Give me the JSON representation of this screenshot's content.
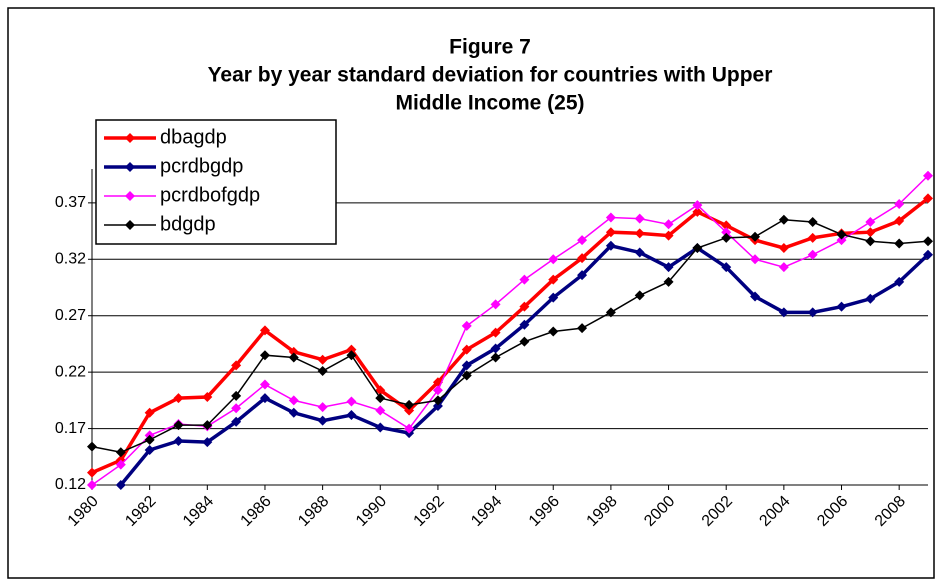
{
  "chart_data": {
    "type": "line",
    "title": [
      "Figure 7",
      "Year by year standard deviation for countries  with Upper",
      "Middle Income (25)"
    ],
    "x": [
      1980,
      1981,
      1982,
      1983,
      1984,
      1985,
      1986,
      1987,
      1988,
      1989,
      1990,
      1991,
      1992,
      1993,
      1994,
      1995,
      1996,
      1997,
      1998,
      1999,
      2000,
      2001,
      2002,
      2003,
      2004,
      2005,
      2006,
      2007,
      2008,
      2009
    ],
    "series": [
      {
        "name": "dbagdp",
        "color": "#ff0000",
        "values": [
          0.131,
          0.142,
          0.184,
          0.197,
          0.198,
          0.226,
          0.257,
          0.238,
          0.231,
          0.24,
          0.204,
          0.186,
          0.211,
          0.24,
          0.255,
          0.278,
          0.302,
          0.321,
          0.344,
          0.343,
          0.341,
          0.362,
          0.35,
          0.337,
          0.33,
          0.339,
          0.343,
          0.344,
          0.354,
          0.374
        ]
      },
      {
        "name": "pcrdbgdp",
        "color": "#000080",
        "values": [
          null,
          0.12,
          0.151,
          0.159,
          0.158,
          0.176,
          0.197,
          0.184,
          0.177,
          0.182,
          0.171,
          0.166,
          0.19,
          0.226,
          0.241,
          0.262,
          0.286,
          0.306,
          0.332,
          0.326,
          0.313,
          0.33,
          0.313,
          0.287,
          0.273,
          0.273,
          0.278,
          0.285,
          0.3,
          0.324
        ]
      },
      {
        "name": "pcrdbofgdp",
        "color": "#ff00ff",
        "values": [
          0.12,
          0.138,
          0.164,
          0.174,
          0.172,
          0.188,
          0.209,
          0.195,
          0.189,
          0.194,
          0.186,
          0.17,
          0.204,
          0.261,
          0.28,
          0.302,
          0.32,
          0.337,
          0.357,
          0.356,
          0.351,
          0.368,
          0.344,
          0.32,
          0.313,
          0.324,
          0.337,
          0.353,
          0.369,
          0.394
        ]
      },
      {
        "name": "bdgdp",
        "color": "#000000",
        "values": [
          0.154,
          0.149,
          0.16,
          0.173,
          0.173,
          0.199,
          0.235,
          0.233,
          0.221,
          0.235,
          0.197,
          0.191,
          0.195,
          0.217,
          0.233,
          0.247,
          0.256,
          0.259,
          0.273,
          0.288,
          0.3,
          0.33,
          0.339,
          0.34,
          0.355,
          0.353,
          0.342,
          0.336,
          0.334,
          0.336
        ]
      }
    ],
    "xlim": [
      1980,
      2009
    ],
    "xticks": [
      1980,
      1982,
      1984,
      1986,
      1988,
      1990,
      1992,
      1994,
      1996,
      1998,
      2000,
      2002,
      2004,
      2006,
      2008
    ],
    "ylim": [
      0.12,
      0.4
    ],
    "yticks": [
      0.12,
      0.17,
      0.22,
      0.27,
      0.32,
      0.37
    ],
    "grid": true,
    "legend": "upper-left"
  }
}
